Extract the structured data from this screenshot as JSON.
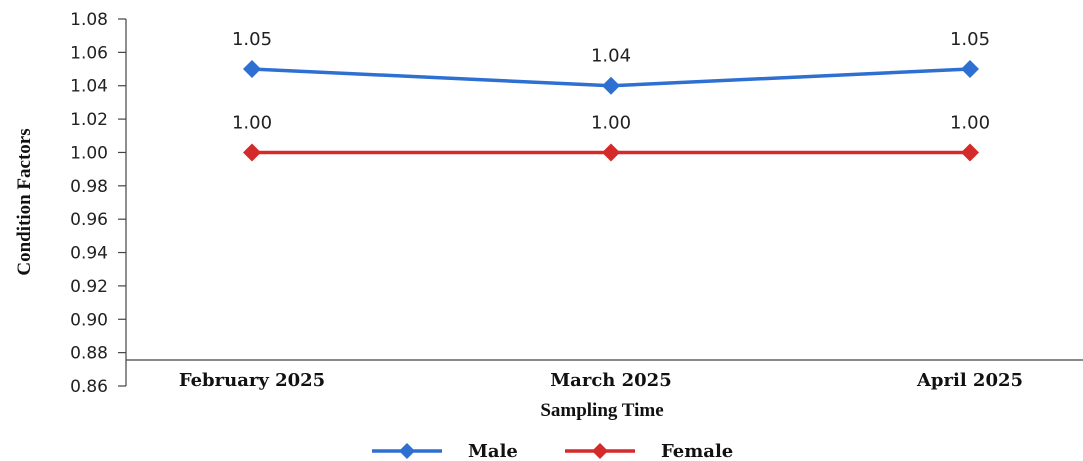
{
  "chart_data": {
    "type": "line",
    "xlabel": "Sampling Time",
    "ylabel": "Condition Factors",
    "categories": [
      "February 2025",
      "March 2025",
      "April 2025"
    ],
    "ylim": [
      0.86,
      1.08
    ],
    "yticks": [
      "0.86",
      "0.88",
      "0.90",
      "0.92",
      "0.94",
      "0.96",
      "0.98",
      "1.00",
      "1.02",
      "1.04",
      "1.06",
      "1.08"
    ],
    "grid": false,
    "legend_position": "bottom",
    "series": [
      {
        "name": "Male",
        "values": [
          1.05,
          1.04,
          1.05
        ],
        "labels": [
          "1.05",
          "1.04",
          "1.05"
        ],
        "color": "#2e6fd2",
        "marker": "diamond"
      },
      {
        "name": "Female",
        "values": [
          1.0,
          1.0,
          1.0
        ],
        "labels": [
          "1.00",
          "1.00",
          "1.00"
        ],
        "color": "#d42a2a",
        "marker": "diamond"
      }
    ]
  }
}
